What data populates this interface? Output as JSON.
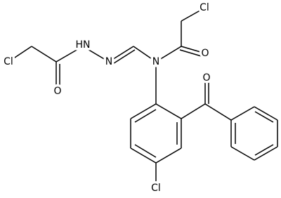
{
  "atoms": [
    "Cl",
    "HN",
    "N",
    "O",
    "N",
    "O",
    "Cl",
    "O",
    "Cl"
  ]
}
